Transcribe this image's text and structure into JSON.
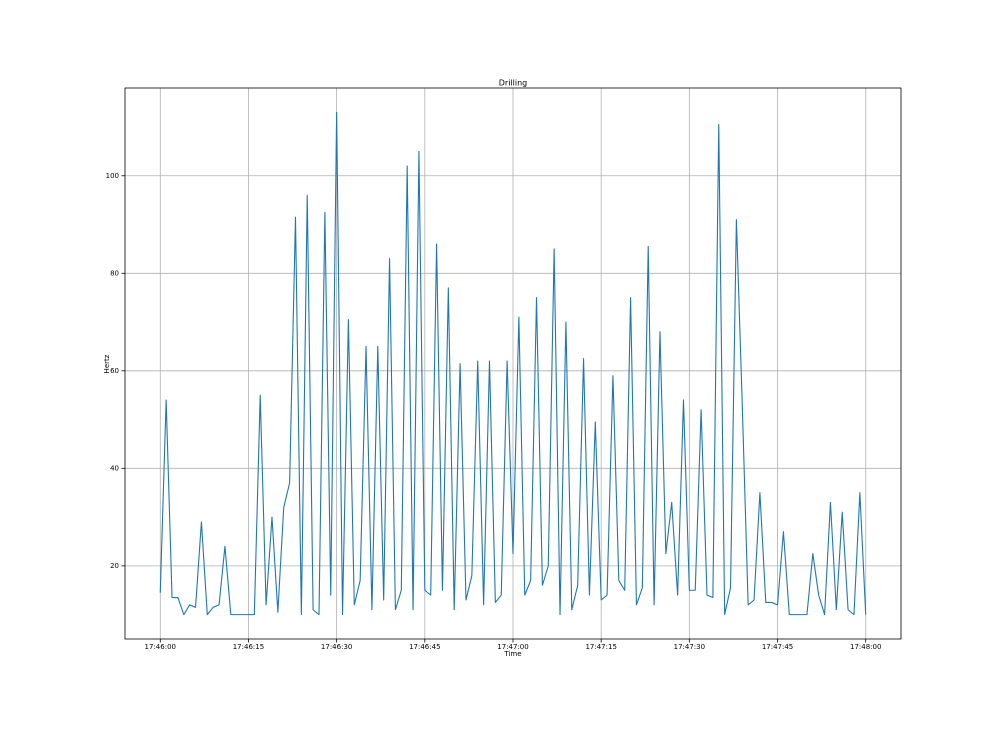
{
  "chart_data": {
    "type": "line",
    "title": "Drilling",
    "xlabel": "Time",
    "ylabel": "Hertz",
    "x": [
      "17:46:00",
      "17:46:01",
      "17:46:02",
      "17:46:03",
      "17:46:04",
      "17:46:05",
      "17:46:06",
      "17:46:07",
      "17:46:08",
      "17:46:09",
      "17:46:10",
      "17:46:11",
      "17:46:12",
      "17:46:13",
      "17:46:14",
      "17:46:15",
      "17:46:16",
      "17:46:17",
      "17:46:18",
      "17:46:19",
      "17:46:20",
      "17:46:21",
      "17:46:22",
      "17:46:23",
      "17:46:24",
      "17:46:25",
      "17:46:26",
      "17:46:27",
      "17:46:28",
      "17:46:29",
      "17:46:30",
      "17:46:31",
      "17:46:32",
      "17:46:33",
      "17:46:34",
      "17:46:35",
      "17:46:36",
      "17:46:37",
      "17:46:38",
      "17:46:39",
      "17:46:40",
      "17:46:41",
      "17:46:42",
      "17:46:43",
      "17:46:44",
      "17:46:45",
      "17:46:46",
      "17:46:47",
      "17:46:48",
      "17:46:49",
      "17:46:50",
      "17:46:51",
      "17:46:52",
      "17:46:53",
      "17:46:54",
      "17:46:55",
      "17:46:56",
      "17:46:57",
      "17:46:58",
      "17:46:59",
      "17:47:00",
      "17:47:01",
      "17:47:02",
      "17:47:03",
      "17:47:04",
      "17:47:05",
      "17:47:06",
      "17:47:07",
      "17:47:08",
      "17:47:09",
      "17:47:10",
      "17:47:11",
      "17:47:12",
      "17:47:13",
      "17:47:14",
      "17:47:15",
      "17:47:16",
      "17:47:17",
      "17:47:18",
      "17:47:19",
      "17:47:20",
      "17:47:21",
      "17:47:22",
      "17:47:23",
      "17:47:24",
      "17:47:25",
      "17:47:26",
      "17:47:27",
      "17:47:28",
      "17:47:29",
      "17:47:30",
      "17:47:31",
      "17:47:32",
      "17:47:33",
      "17:47:34",
      "17:47:35",
      "17:47:36",
      "17:47:37",
      "17:47:38",
      "17:47:39",
      "17:47:40",
      "17:47:41",
      "17:47:42",
      "17:47:43",
      "17:47:44",
      "17:47:45",
      "17:47:46",
      "17:47:47",
      "17:47:48",
      "17:47:49",
      "17:47:50",
      "17:47:51",
      "17:47:52",
      "17:47:53",
      "17:47:54",
      "17:47:55",
      "17:47:56",
      "17:47:57",
      "17:47:58",
      "17:47:59",
      "17:48:00"
    ],
    "series": [
      {
        "name": "Hertz",
        "color": "#1f77b4",
        "values": [
          14.5,
          54,
          13.5,
          13.5,
          10,
          12,
          11.5,
          29,
          10,
          11.5,
          12,
          24,
          10,
          10,
          10,
          10,
          10,
          55,
          12,
          30,
          10.5,
          32,
          37,
          91.5,
          10,
          96,
          11,
          10,
          92.5,
          14,
          113,
          10,
          70.5,
          12,
          17,
          65,
          11,
          65,
          13,
          83,
          11,
          15,
          102,
          11,
          105,
          15,
          14,
          86,
          15,
          77,
          11,
          61.5,
          13,
          18,
          62,
          12,
          62,
          12.5,
          14,
          62,
          22.5,
          71,
          14,
          17,
          75,
          16,
          20,
          85,
          10,
          70,
          11,
          16,
          62.5,
          14,
          49.5,
          13,
          14,
          59,
          17,
          15,
          75,
          12,
          15.5,
          85.5,
          12,
          68,
          22.5,
          33,
          14,
          54,
          15,
          15,
          52,
          14,
          13.5,
          110.5,
          10,
          15.5,
          91,
          53,
          12,
          13,
          35,
          12.5,
          12.5,
          12,
          27,
          10,
          10,
          10,
          10,
          22.5,
          14,
          10,
          33,
          11,
          31,
          11,
          10,
          35,
          10
        ]
      }
    ],
    "xlim": [
      "17:45:54",
      "17:48:06"
    ],
    "xticks": [
      "17:46:00",
      "17:46:15",
      "17:46:30",
      "17:46:45",
      "17:47:00",
      "17:47:15",
      "17:47:30",
      "17:47:45",
      "17:48:00"
    ],
    "ylim": [
      5,
      118
    ],
    "yticks": [
      20,
      40,
      60,
      80,
      100
    ],
    "grid": true
  }
}
